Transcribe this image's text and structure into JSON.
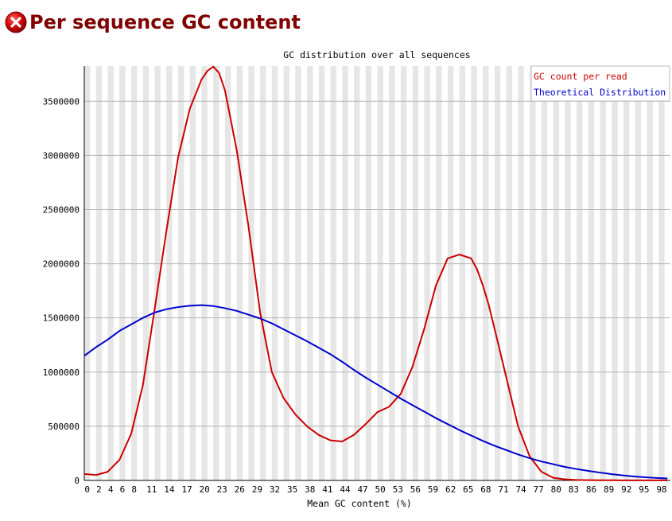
{
  "page": {
    "title": "Per sequence GC content",
    "status_icon": "fail-icon",
    "status_color": "#c00000"
  },
  "chart_data": {
    "type": "line",
    "title": "GC distribution over all sequences",
    "xlabel": "Mean GC content (%)",
    "ylabel": "",
    "xlim": [
      0,
      100
    ],
    "ylim": [
      0,
      3825000
    ],
    "grid": true,
    "legend_position": "top-right",
    "x_tick_labels": [
      "0",
      "2",
      "4",
      "6",
      "8",
      "11",
      "14",
      "17",
      "20",
      "23",
      "26",
      "29",
      "32",
      "35",
      "38",
      "41",
      "44",
      "47",
      "50",
      "53",
      "56",
      "59",
      "62",
      "65",
      "68",
      "71",
      "74",
      "77",
      "80",
      "83",
      "86",
      "89",
      "92",
      "95",
      "98"
    ],
    "y_tick_labels": [
      "0",
      "500000",
      "1000000",
      "1500000",
      "2000000",
      "2500000",
      "3000000",
      "3500000"
    ],
    "y_ticks": [
      0,
      500000,
      1000000,
      1500000,
      2000000,
      2500000,
      3000000,
      3500000
    ],
    "series": [
      {
        "name": "GC count per read",
        "color": "#cc0000",
        "x": [
          0,
          2,
          4,
          6,
          8,
          10,
          12,
          14,
          16,
          18,
          20,
          21,
          22,
          23,
          24,
          26,
          28,
          30,
          32,
          34,
          36,
          38,
          40,
          42,
          44,
          46,
          48,
          50,
          52,
          54,
          56,
          58,
          60,
          62,
          64,
          66,
          67,
          68,
          69,
          70,
          72,
          74,
          76,
          78,
          80,
          82,
          84,
          86,
          88,
          90,
          92,
          94,
          96,
          98,
          100
        ],
        "values": [
          60000,
          50000,
          80000,
          190000,
          430000,
          880000,
          1580000,
          2300000,
          2980000,
          3430000,
          3700000,
          3780000,
          3820000,
          3760000,
          3600000,
          3050000,
          2350000,
          1550000,
          1000000,
          760000,
          610000,
          500000,
          420000,
          370000,
          360000,
          420000,
          520000,
          630000,
          680000,
          800000,
          1050000,
          1400000,
          1800000,
          2050000,
          2085000,
          2050000,
          1950000,
          1800000,
          1620000,
          1400000,
          950000,
          500000,
          220000,
          80000,
          25000,
          10000,
          5000,
          3000,
          2000,
          1500,
          1000,
          1000,
          1000,
          1000,
          1000
        ]
      },
      {
        "name": "Theoretical Distribution",
        "color": "#0000cc",
        "x": [
          0,
          2,
          4,
          6,
          8,
          10,
          12,
          14,
          16,
          18,
          20,
          22,
          24,
          26,
          28,
          30,
          32,
          34,
          36,
          38,
          40,
          42,
          44,
          46,
          48,
          50,
          52,
          54,
          56,
          58,
          60,
          62,
          64,
          66,
          68,
          70,
          72,
          74,
          76,
          78,
          80,
          82,
          84,
          86,
          88,
          90,
          92,
          94,
          96,
          98,
          100
        ],
        "values": [
          1150000,
          1230000,
          1300000,
          1380000,
          1440000,
          1500000,
          1550000,
          1580000,
          1600000,
          1612000,
          1618000,
          1610000,
          1590000,
          1565000,
          1530000,
          1495000,
          1450000,
          1395000,
          1340000,
          1285000,
          1225000,
          1165000,
          1095000,
          1020000,
          950000,
          885000,
          820000,
          755000,
          695000,
          635000,
          575000,
          520000,
          465000,
          415000,
          365000,
          320000,
          280000,
          240000,
          205000,
          175000,
          150000,
          125000,
          105000,
          88000,
          72000,
          58000,
          46000,
          36000,
          28000,
          22000,
          18000
        ]
      }
    ]
  }
}
